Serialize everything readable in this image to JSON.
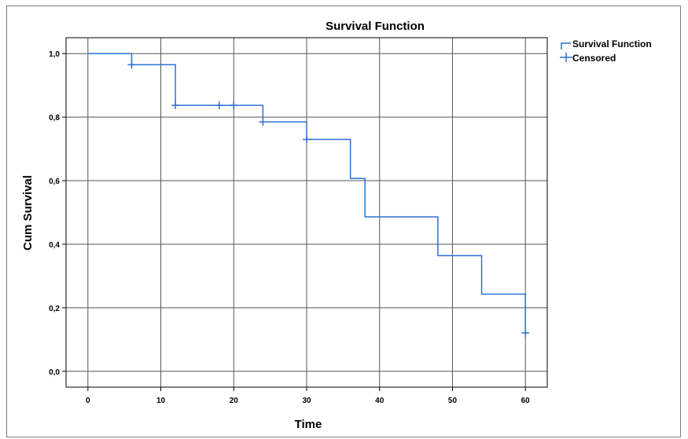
{
  "chart_data": {
    "type": "line",
    "title": "Survival Function",
    "xlabel": "Time",
    "ylabel": "Cum Survival",
    "xlim": [
      -3,
      63
    ],
    "ylim": [
      -0.05,
      1.05
    ],
    "x_ticks": [
      0,
      10,
      20,
      30,
      40,
      50,
      60
    ],
    "x_tick_labels": [
      "0",
      "10",
      "20",
      "30",
      "40",
      "50",
      "60"
    ],
    "y_ticks": [
      0.0,
      0.2,
      0.4,
      0.6,
      0.8,
      1.0
    ],
    "y_tick_labels": [
      "0,0",
      "0,2",
      "0,4",
      "0,6",
      "0,8",
      "1,0"
    ],
    "grid": true,
    "legend_position": "top-right",
    "line_color": "#2e6fd6",
    "series": [
      {
        "name": "Survival Function",
        "step": true,
        "x": [
          0,
          6,
          12,
          24,
          30,
          36,
          38,
          48,
          54,
          60
        ],
        "y": [
          1.0,
          0.965,
          0.837,
          0.785,
          0.73,
          0.607,
          0.486,
          0.364,
          0.243,
          0.121
        ]
      },
      {
        "name": "Censored",
        "marker": "plus",
        "x": [
          6,
          12,
          18,
          20,
          24,
          30,
          60
        ],
        "y": [
          0.965,
          0.837,
          0.837,
          0.837,
          0.785,
          0.73,
          0.121
        ]
      }
    ]
  }
}
